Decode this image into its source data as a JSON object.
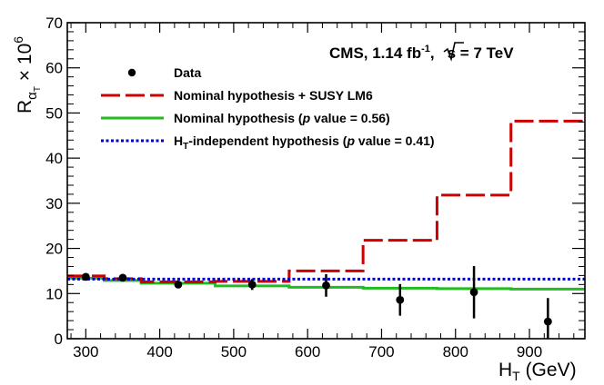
{
  "chart_data": {
    "type": "scatter",
    "annotation": {
      "experiment": "CMS, 1.14 fb",
      "lumi_sup": "-1",
      "sep": ",",
      "sqrt_s": "s = 7 TeV"
    },
    "xlabel": {
      "main": "H",
      "sub": "T",
      "unit": " (GeV)"
    },
    "ylabel": {
      "main": "R",
      "sub": "α",
      "subsub": "T",
      "times": " × 10",
      "sup": "6"
    },
    "xlim": [
      275,
      975
    ],
    "ylim": [
      0,
      70
    ],
    "x_ticks": [
      300,
      400,
      500,
      600,
      700,
      800,
      900
    ],
    "y_ticks": [
      0,
      10,
      20,
      30,
      40,
      50,
      60,
      70
    ],
    "legend": {
      "placement": "top-left",
      "data_label": "Data",
      "lm6_label": "Nominal hypothesis + SUSY LM6",
      "nominal_label_pre": "Nominal hypothesis (",
      "nominal_label_p": "p",
      "nominal_label_post": " value = 0.56)",
      "indep_label_h": "H",
      "indep_label_sub": "T",
      "indep_label_pre": "-independent hypothesis (",
      "indep_label_p": "p",
      "indep_label_post": " value = 0.41)"
    },
    "colors": {
      "data": "#000000",
      "lm6": "#cc0000",
      "nominal": "#22bb22",
      "independent": "#0000cc"
    },
    "series": [
      {
        "name": "Data",
        "x": [
          300,
          350,
          425,
          525,
          625,
          725,
          825,
          925
        ],
        "y": [
          13.7,
          13.5,
          12.0,
          12.0,
          11.8,
          8.6,
          10.3,
          3.8
        ],
        "yerr": [
          0.5,
          0.6,
          0.7,
          1.2,
          2.5,
          3.5,
          5.8,
          5.2
        ]
      },
      {
        "name": "Nominal hypothesis + SUSY LM6",
        "bins": [
          275,
          325,
          375,
          475,
          575,
          675,
          775,
          875,
          975
        ],
        "values": [
          13.9,
          13.3,
          12.6,
          12.7,
          15.0,
          21.8,
          31.8,
          48.2
        ]
      },
      {
        "name": "Nominal hypothesis",
        "bins": [
          275,
          325,
          375,
          475,
          575,
          675,
          775,
          875,
          975
        ],
        "values": [
          13.4,
          12.9,
          12.3,
          11.7,
          11.4,
          11.2,
          11.1,
          11.0
        ]
      },
      {
        "name": "HT-independent hypothesis",
        "bins": [
          275,
          975
        ],
        "values": [
          13.2
        ]
      }
    ]
  }
}
